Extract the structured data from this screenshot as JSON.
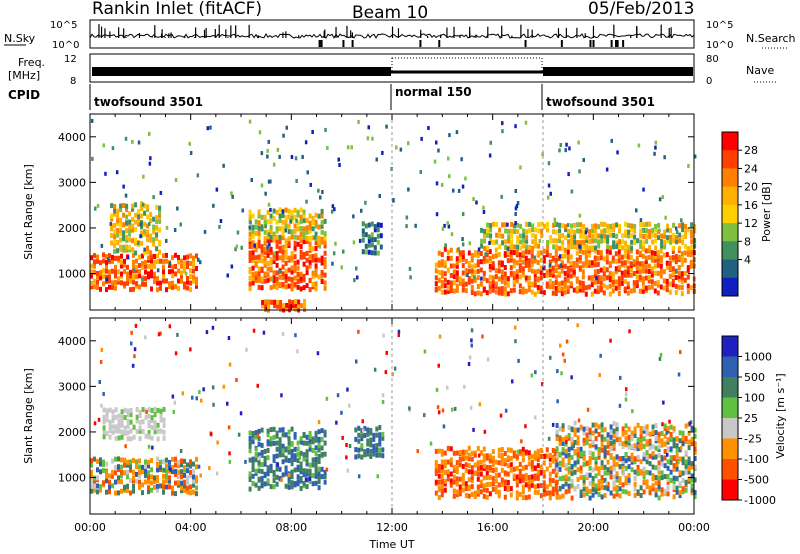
{
  "header": {
    "station": "Rankin Inlet (fitACF)",
    "beam": "Beam 10",
    "date": "05/Feb/2013"
  },
  "noise_panel": {
    "left_label": "N.Sky",
    "right_label": "N.Search",
    "left_ticks": [
      "10^5",
      "10^0"
    ],
    "right_ticks": [
      "10^5",
      "10^0"
    ]
  },
  "freq_panel": {
    "left_label_line1": "Freq.",
    "left_label_line2": "[MHz]",
    "right_label": "Nave",
    "left_ticks": [
      "12",
      "8"
    ],
    "right_ticks": [
      "80",
      "0"
    ]
  },
  "cpid_panel": {
    "label": "CPID",
    "segments": [
      {
        "name": "twofsound 3501",
        "start_hour": 0,
        "end_hour": 12
      },
      {
        "name": "normal 150",
        "start_hour": 12,
        "end_hour": 18
      },
      {
        "name": "twofsound 3501",
        "start_hour": 18,
        "end_hour": 24
      }
    ]
  },
  "x_axis": {
    "label": "Time UT",
    "ticks": [
      "00:00",
      "04:00",
      "08:00",
      "12:00",
      "16:00",
      "20:00",
      "00:00"
    ],
    "range_hours": [
      0,
      24
    ]
  },
  "power_panel": {
    "ylabel": "Slant Range [km]",
    "yticks": [
      "1000",
      "2000",
      "3000",
      "4000"
    ],
    "colorbar_label": "Power [dB]",
    "colorbar_ticks": [
      "28",
      "24",
      "20",
      "16",
      "12",
      "8",
      "4"
    ],
    "colors": [
      "#ff0000",
      "#ff4000",
      "#ff8000",
      "#ffb000",
      "#ffd000",
      "#80c040",
      "#409060",
      "#206080",
      "#1020c0"
    ]
  },
  "velocity_panel": {
    "ylabel": "Slant Range [km]",
    "yticks": [
      "1000",
      "2000",
      "3000",
      "4000"
    ],
    "colorbar_label": "Velocity [m s⁻¹]",
    "colorbar_ticks": [
      "1000",
      "500",
      "100",
      "25",
      "-25",
      "-100",
      "-500",
      "-1000"
    ],
    "colors": [
      "#2020c0",
      "#3060b0",
      "#408060",
      "#60c040",
      "#c8c8c8",
      "#ff9000",
      "#ff5000",
      "#ff0000"
    ]
  },
  "chart_data": {
    "type": "heatmap",
    "x_range_hours": [
      0,
      24
    ],
    "y_range_km": [
      200,
      4500
    ],
    "power_regions": [
      {
        "t0": 0.0,
        "t1": 4.2,
        "r0": 700,
        "r1": 1500,
        "level": "high"
      },
      {
        "t0": 0.8,
        "t1": 2.8,
        "r0": 1500,
        "r1": 2600,
        "level": "mid"
      },
      {
        "t0": 6.3,
        "t1": 9.3,
        "r0": 700,
        "r1": 1800,
        "level": "high"
      },
      {
        "t0": 6.3,
        "t1": 9.3,
        "r0": 1800,
        "r1": 2500,
        "level": "mid"
      },
      {
        "t0": 10.8,
        "t1": 11.6,
        "r0": 1500,
        "r1": 2200,
        "level": "low"
      },
      {
        "t0": 13.7,
        "t1": 24.0,
        "r0": 600,
        "r1": 1600,
        "level": "high"
      },
      {
        "t0": 15.5,
        "t1": 24.0,
        "r0": 1600,
        "r1": 2200,
        "level": "mid"
      },
      {
        "t0": 6.8,
        "t1": 8.5,
        "r0": 250,
        "r1": 500,
        "level": "high"
      }
    ],
    "velocity_regions": [
      {
        "t0": 0.0,
        "t1": 4.2,
        "r0": 700,
        "r1": 1500,
        "sign": "mixed"
      },
      {
        "t0": 0.5,
        "t1": 3.0,
        "r0": 1900,
        "r1": 2600,
        "sign": "zero"
      },
      {
        "t0": 6.3,
        "t1": 9.3,
        "r0": 800,
        "r1": 2100,
        "sign": "positive"
      },
      {
        "t0": 10.5,
        "t1": 11.6,
        "r0": 1500,
        "r1": 2200,
        "sign": "positive"
      },
      {
        "t0": 13.7,
        "t1": 18.5,
        "r0": 600,
        "r1": 1700,
        "sign": "negative"
      },
      {
        "t0": 18.5,
        "t1": 24.0,
        "r0": 600,
        "r1": 2200,
        "sign": "mixed"
      }
    ]
  }
}
